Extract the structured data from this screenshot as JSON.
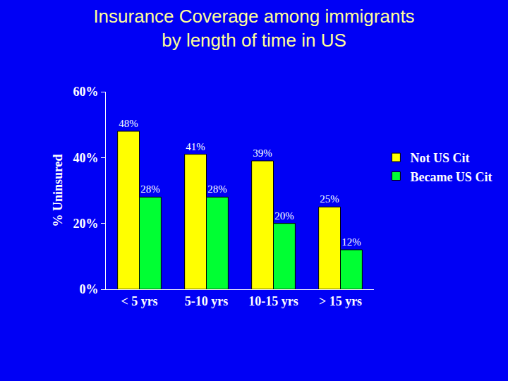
{
  "chart_data": {
    "type": "bar",
    "title": "Insurance Coverage among immigrants\nby length of time in US",
    "y_label": "% Uninsured",
    "categories": [
      "< 5 yrs",
      "5-10 yrs",
      "10-15 yrs",
      "> 15 yrs"
    ],
    "series": [
      {
        "name": "Not US Cit",
        "color": "#ffff00",
        "values": [
          48,
          41,
          39,
          25
        ],
        "value_labels": [
          "48%",
          "41%",
          "39%",
          "25%"
        ]
      },
      {
        "name": "Became US Cit",
        "color": "#00ff33",
        "values": [
          28,
          28,
          20,
          12
        ],
        "value_labels": [
          "28%",
          "28%",
          "20%",
          "12%"
        ]
      }
    ],
    "ylim": [
      0,
      60
    ],
    "yticks": [
      {
        "value": 0,
        "label": "0%"
      },
      {
        "value": 20,
        "label": "20%"
      },
      {
        "value": 40,
        "label": "40%"
      },
      {
        "value": 60,
        "label": "60%"
      }
    ],
    "grid": false,
    "legend": "right",
    "data_labels": true
  }
}
